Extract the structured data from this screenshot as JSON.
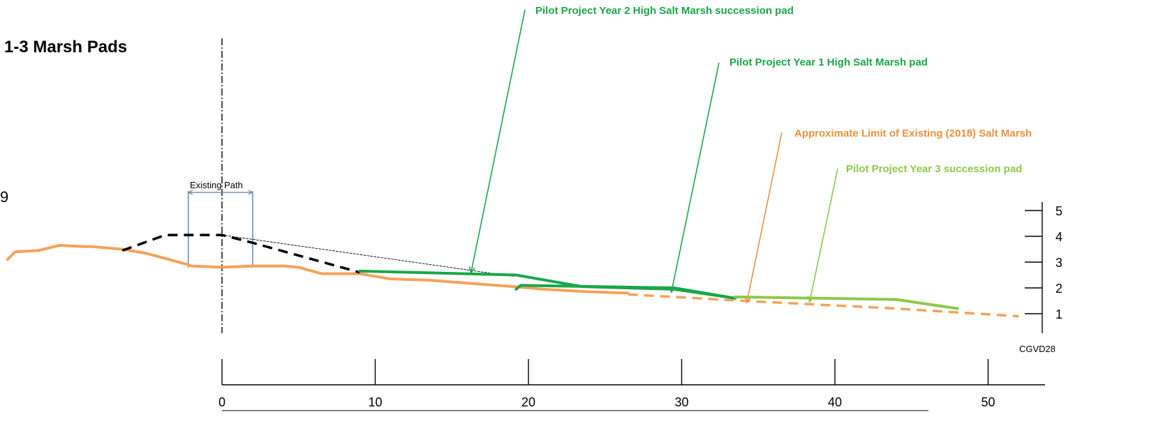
{
  "title": "1-3 Marsh Pads",
  "edge_number": "9",
  "existing_path_label": "Existing Path",
  "datum_label": "CGVD28",
  "colors": {
    "orange": "#f4a259",
    "orange_text": "#e8913f",
    "dark_green": "#1aa64a",
    "light_green": "#8cc84b",
    "path_blue": "#5b7fa8"
  },
  "annotations": [
    {
      "id": "year2",
      "text": "Pilot Project Year 2 High Salt Marsh succession pad",
      "color": "#1aa64a"
    },
    {
      "id": "year1",
      "text": "Pilot Project Year 1 High Salt Marsh pad",
      "color": "#1aa64a"
    },
    {
      "id": "limit",
      "text": "Approximate Limit of Existing (2018) Salt Marsh",
      "color": "#e8913f"
    },
    {
      "id": "year3",
      "text": "Pilot Project Year 3 succession pad",
      "color": "#8cc84b"
    }
  ],
  "chart_data": {
    "type": "line",
    "x_axis": {
      "ticks": [
        0,
        10,
        20,
        30,
        40,
        50
      ],
      "range": [
        -14.5,
        53
      ]
    },
    "y_axis": {
      "ticks": [
        1,
        2,
        3,
        4,
        5
      ],
      "range": [
        0.3,
        5.3
      ],
      "label": "CGVD28"
    },
    "series": [
      {
        "key": "existing_ground",
        "style": "solid",
        "color": "#f4a259",
        "points": [
          [
            -14,
            3.1
          ],
          [
            -13.5,
            3.4
          ],
          [
            -12,
            3.45
          ],
          [
            -10.6,
            3.65
          ],
          [
            -9,
            3.6
          ],
          [
            -8.5,
            3.6
          ],
          [
            -6.5,
            3.5
          ],
          [
            -5,
            3.35
          ],
          [
            -2.2,
            2.9
          ],
          [
            -2,
            2.85
          ],
          [
            0,
            2.8
          ],
          [
            2,
            2.85
          ],
          [
            4,
            2.85
          ],
          [
            5,
            2.8
          ],
          [
            6.5,
            2.55
          ],
          [
            9,
            2.55
          ],
          [
            11,
            2.35
          ],
          [
            13.5,
            2.3
          ],
          [
            19,
            2.05
          ],
          [
            21,
            1.95
          ],
          [
            24,
            1.85
          ],
          [
            26.5,
            1.8
          ]
        ]
      },
      {
        "key": "existing_ground_projected",
        "style": "dashed",
        "color": "#f4a259",
        "points": [
          [
            26.5,
            1.75
          ],
          [
            34,
            1.5
          ],
          [
            44,
            1.2
          ],
          [
            52,
            0.9
          ]
        ]
      },
      {
        "key": "path_section",
        "style": "dashed",
        "color": "#000000",
        "points": [
          [
            -6.5,
            3.45
          ],
          [
            -3.7,
            4.05
          ],
          [
            0,
            4.05
          ],
          [
            2,
            3.75
          ],
          [
            9,
            2.6
          ]
        ]
      },
      {
        "key": "slope_reference",
        "style": "thin-dashed",
        "color": "#000000",
        "points": [
          [
            0,
            4.05
          ],
          [
            19,
            2.45
          ]
        ]
      },
      {
        "key": "year2_pad",
        "style": "solid",
        "color": "#1aa64a",
        "points": [
          [
            9,
            2.65
          ],
          [
            19.2,
            2.5
          ],
          [
            23.5,
            2.05
          ],
          [
            29.5,
            1.95
          ],
          [
            33.5,
            1.6
          ]
        ]
      },
      {
        "key": "year1_pad",
        "style": "solid",
        "color": "#1aa64a",
        "points": [
          [
            19.2,
            1.95
          ],
          [
            19.5,
            2.1
          ],
          [
            29.5,
            2.0
          ],
          [
            33.5,
            1.6
          ]
        ]
      },
      {
        "key": "year3_pad",
        "style": "solid",
        "color": "#8cc84b",
        "points": [
          [
            33.5,
            1.65
          ],
          [
            44,
            1.55
          ],
          [
            48,
            1.2
          ]
        ]
      }
    ],
    "existing_path": {
      "x_start": -2.2,
      "x_end": 2
    }
  }
}
